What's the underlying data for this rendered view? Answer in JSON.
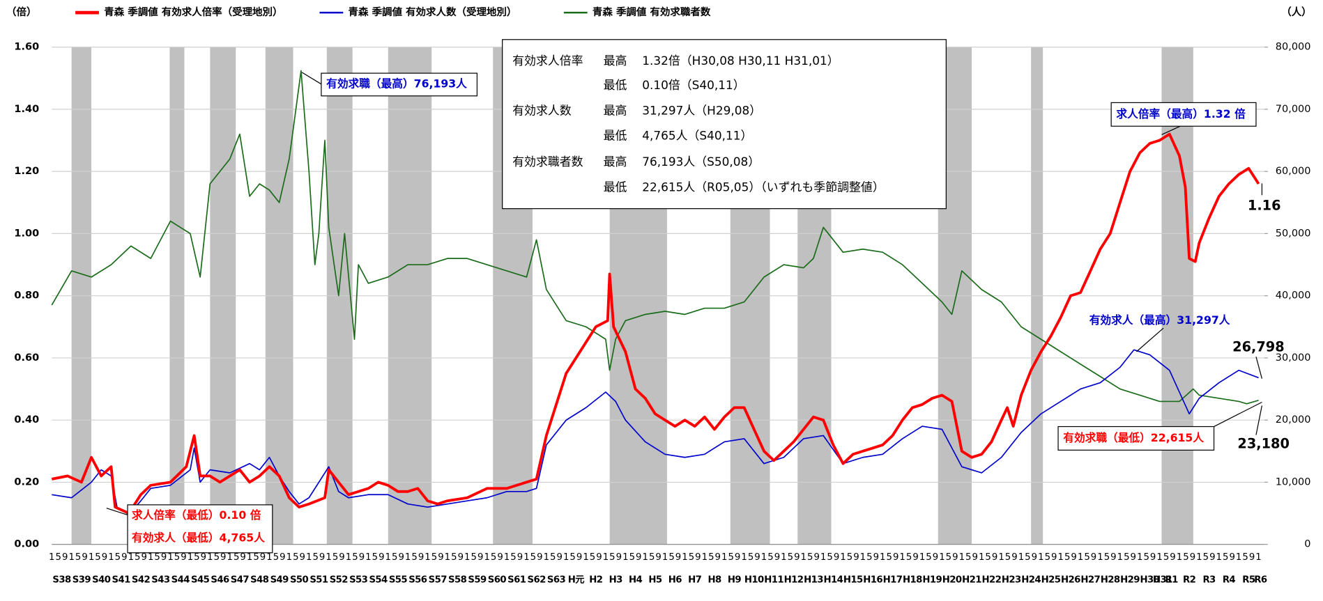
{
  "chart_data": {
    "type": "line",
    "left_axis_label": "（倍）",
    "right_axis_label": "（人）",
    "xlim": [
      1963,
      2024.3
    ],
    "ylim": [
      0,
      1.6
    ],
    "y2lim": [
      0,
      80000
    ],
    "yticks": [
      {
        "value": 0,
        "label": "0.00"
      },
      {
        "value": 0.2,
        "label": "0.20"
      },
      {
        "value": 0.4,
        "label": "0.40"
      },
      {
        "value": 0.6,
        "label": "0.60"
      },
      {
        "value": 0.8,
        "label": "0.80"
      },
      {
        "value": 1,
        "label": "1.00"
      },
      {
        "value": 1.2,
        "label": "1.20"
      },
      {
        "value": 1.4,
        "label": "1.40"
      },
      {
        "value": 1.6,
        "label": "1.60"
      }
    ],
    "y2ticks": [
      0,
      {
        "value": 10000,
        "label": "10,000"
      },
      {
        "value": 20000,
        "label": "20,000"
      },
      {
        "value": 30000,
        "label": "30,000"
      },
      {
        "value": 40000,
        "label": "40,000"
      },
      {
        "value": 50000,
        "label": "50,000"
      },
      {
        "value": 60000,
        "label": "60,000"
      },
      {
        "value": 70000,
        "label": "70,000"
      },
      {
        "value": 80000,
        "label": "80,000"
      }
    ],
    "grid": true,
    "month_labels": [
      "1",
      "5",
      "9"
    ],
    "xticks": [
      {
        "value": 1963.5,
        "label": "S38"
      },
      {
        "value": 1964.5,
        "label": "S39"
      },
      {
        "value": 1965.5,
        "label": "S40"
      },
      {
        "value": 1966.5,
        "label": "S41"
      },
      {
        "value": 1967.5,
        "label": "S42"
      },
      {
        "value": 1968.5,
        "label": "S43"
      },
      {
        "value": 1969.5,
        "label": "S44"
      },
      {
        "value": 1970.5,
        "label": "S45"
      },
      {
        "value": 1971.5,
        "label": "S46"
      },
      {
        "value": 1972.5,
        "label": "S47"
      },
      {
        "value": 1973.5,
        "label": "S48"
      },
      {
        "value": 1974.5,
        "label": "S49"
      },
      {
        "value": 1975.5,
        "label": "S50"
      },
      {
        "value": 1976.5,
        "label": "S51"
      },
      {
        "value": 1977.5,
        "label": "S52"
      },
      {
        "value": 1978.5,
        "label": "S53"
      },
      {
        "value": 1979.5,
        "label": "S54"
      },
      {
        "value": 1980.5,
        "label": "S55"
      },
      {
        "value": 1981.5,
        "label": "S56"
      },
      {
        "value": 1982.5,
        "label": "S57"
      },
      {
        "value": 1983.5,
        "label": "S58"
      },
      {
        "value": 1984.5,
        "label": "S59"
      },
      {
        "value": 1985.5,
        "label": "S60"
      },
      {
        "value": 1986.5,
        "label": "S61"
      },
      {
        "value": 1987.5,
        "label": "S62"
      },
      {
        "value": 1988.5,
        "label": "S63"
      },
      {
        "value": 1989.5,
        "label": "H元"
      },
      {
        "value": 1990.5,
        "label": "H2"
      },
      {
        "value": 1991.5,
        "label": "H3"
      },
      {
        "value": 1992.5,
        "label": "H4"
      },
      {
        "value": 1993.5,
        "label": "H5"
      },
      {
        "value": 1994.5,
        "label": "H6"
      },
      {
        "value": 1995.5,
        "label": "H7"
      },
      {
        "value": 1996.5,
        "label": "H8"
      },
      {
        "value": 1997.5,
        "label": "H9"
      },
      {
        "value": 1998.5,
        "label": "H10"
      },
      {
        "value": 1999.5,
        "label": "H11"
      },
      {
        "value": 2000.5,
        "label": "H12"
      },
      {
        "value": 2001.5,
        "label": "H13"
      },
      {
        "value": 2002.5,
        "label": "H14"
      },
      {
        "value": 2003.5,
        "label": "H15"
      },
      {
        "value": 2004.5,
        "label": "H16"
      },
      {
        "value": 2005.5,
        "label": "H17"
      },
      {
        "value": 2006.5,
        "label": "H18"
      },
      {
        "value": 2007.5,
        "label": "H19"
      },
      {
        "value": 2008.5,
        "label": "H20"
      },
      {
        "value": 2009.5,
        "label": "H21"
      },
      {
        "value": 2010.5,
        "label": "H22"
      },
      {
        "value": 2011.5,
        "label": "H23"
      },
      {
        "value": 2012.5,
        "label": "H24"
      },
      {
        "value": 2013.5,
        "label": "H25"
      },
      {
        "value": 2014.5,
        "label": "H26"
      },
      {
        "value": 2015.5,
        "label": "H27"
      },
      {
        "value": 2016.5,
        "label": "H28"
      },
      {
        "value": 2017.5,
        "label": "H29"
      },
      {
        "value": 2018.5,
        "label": "H30"
      },
      {
        "value": 2019.15,
        "label": "H31"
      },
      {
        "value": 2019.6,
        "label": "R1"
      },
      {
        "value": 2020.5,
        "label": "R2"
      },
      {
        "value": 2021.5,
        "label": "R3"
      },
      {
        "value": 2022.5,
        "label": "R4"
      },
      {
        "value": 2023.5,
        "label": "R5"
      },
      {
        "value": 2024.1,
        "label": "R6"
      }
    ],
    "shaded_periods": [
      [
        1964.0,
        1965.0
      ],
      [
        1968.96,
        1969.7
      ],
      [
        1971.0,
        1972.3
      ],
      [
        1973.8,
        1975.2
      ],
      [
        1976.9,
        1978.2
      ],
      [
        1980.0,
        1982.2
      ],
      [
        1985.3,
        1987.3
      ],
      [
        1991.2,
        1994.1
      ],
      [
        1997.3,
        1999.3
      ],
      [
        2000.7,
        2002.4
      ],
      [
        2007.8,
        2009.5
      ],
      [
        2012.5,
        2013.1
      ],
      [
        2019.1,
        2020.7
      ]
    ],
    "series": [
      {
        "name": "青森 季調値 有効求人倍率（受理地別）",
        "color": "#ff0000",
        "axis": "y",
        "x": [
          1963,
          1963.8,
          1964.5,
          1965,
          1965.5,
          1966,
          1966.2,
          1966.9,
          1967.5,
          1968,
          1969,
          1969.8,
          1970.2,
          1970.5,
          1971,
          1971.5,
          1972,
          1972.5,
          1973,
          1973.5,
          1974,
          1974.5,
          1975,
          1975.5,
          1976,
          1976.8,
          1977,
          1977.5,
          1978,
          1978.5,
          1979,
          1979.5,
          1980,
          1980.5,
          1981,
          1981.5,
          1982,
          1982.5,
          1983,
          1984,
          1985,
          1986,
          1987,
          1987.5,
          1988,
          1988.5,
          1989,
          1989.5,
          1990,
          1990.5,
          1991.1,
          1991.2,
          1991.4,
          1992,
          1992.5,
          1993,
          1993.5,
          1994,
          1994.5,
          1995,
          1995.5,
          1996,
          1996.5,
          1997,
          1997.5,
          1998,
          1998.5,
          1999,
          1999.5,
          2000,
          2000.5,
          2001,
          2001.5,
          2002,
          2002.5,
          2003,
          2003.5,
          2004,
          2004.5,
          2005,
          2005.5,
          2006,
          2006.5,
          2007,
          2007.5,
          2008,
          2008.5,
          2009,
          2009.5,
          2010,
          2010.5,
          2011,
          2011.3,
          2011.6,
          2012,
          2012.5,
          2013,
          2013.5,
          2014,
          2014.5,
          2015,
          2015.5,
          2016,
          2016.5,
          2017,
          2017.5,
          2018,
          2018.5,
          2019,
          2019.5,
          2020,
          2020.3,
          2020.5,
          2020.8,
          2021,
          2021.5,
          2022,
          2022.5,
          2023,
          2023.5,
          2023.8,
          2024
        ],
        "values": [
          0.21,
          0.22,
          0.2,
          0.28,
          0.22,
          0.25,
          0.12,
          0.1,
          0.16,
          0.19,
          0.2,
          0.25,
          0.35,
          0.22,
          0.22,
          0.2,
          0.22,
          0.24,
          0.2,
          0.22,
          0.25,
          0.22,
          0.15,
          0.12,
          0.13,
          0.15,
          0.24,
          0.2,
          0.16,
          0.17,
          0.18,
          0.2,
          0.19,
          0.17,
          0.17,
          0.18,
          0.14,
          0.13,
          0.14,
          0.15,
          0.18,
          0.18,
          0.2,
          0.21,
          0.35,
          0.45,
          0.55,
          0.6,
          0.65,
          0.7,
          0.72,
          0.87,
          0.7,
          0.62,
          0.5,
          0.47,
          0.42,
          0.4,
          0.38,
          0.4,
          0.38,
          0.41,
          0.37,
          0.41,
          0.44,
          0.44,
          0.37,
          0.3,
          0.27,
          0.3,
          0.33,
          0.37,
          0.41,
          0.4,
          0.32,
          0.26,
          0.29,
          0.3,
          0.31,
          0.32,
          0.35,
          0.4,
          0.44,
          0.45,
          0.47,
          0.48,
          0.46,
          0.3,
          0.28,
          0.29,
          0.33,
          0.4,
          0.44,
          0.38,
          0.48,
          0.56,
          0.62,
          0.67,
          0.73,
          0.8,
          0.81,
          0.88,
          0.95,
          1.0,
          1.1,
          1.2,
          1.26,
          1.29,
          1.3,
          1.32,
          1.25,
          1.15,
          0.92,
          0.91,
          0.97,
          1.05,
          1.12,
          1.16,
          1.19,
          1.21,
          1.18,
          1.16
        ]
      },
      {
        "name": "青森 季調値 有効求人数（受理地別）",
        "color": "#0000cc",
        "axis": "y2",
        "x": [
          1963,
          1964,
          1965,
          1965.5,
          1966,
          1966.3,
          1966.9,
          1967.5,
          1968,
          1969,
          1970,
          1970.2,
          1970.5,
          1971,
          1972,
          1973,
          1973.5,
          1974,
          1974.5,
          1975,
          1975.5,
          1976,
          1977,
          1977.5,
          1978,
          1979,
          1980,
          1981,
          1982,
          1983,
          1984,
          1985,
          1986,
          1987,
          1987.5,
          1988,
          1989,
          1990,
          1991,
          1991.5,
          1992,
          1993,
          1994,
          1995,
          1996,
          1997,
          1998,
          1999,
          2000,
          2001,
          2002,
          2003,
          2004,
          2005,
          2006,
          2007,
          2008,
          2009,
          2010,
          2011,
          2012,
          2013,
          2014,
          2015,
          2016,
          2017,
          2017.7,
          2018.5,
          2019.5,
          2020.5,
          2021,
          2022,
          2023,
          2024
        ],
        "values": [
          8000,
          7500,
          10000,
          12000,
          11000,
          6000,
          4765,
          7000,
          9000,
          9500,
          12000,
          15500,
          10000,
          12000,
          11500,
          13000,
          12000,
          14000,
          11000,
          8500,
          6500,
          7500,
          12500,
          8500,
          7500,
          8000,
          8000,
          6500,
          6000,
          6500,
          7000,
          7500,
          8500,
          8500,
          9000,
          16000,
          20000,
          22000,
          24500,
          23000,
          20000,
          16500,
          14500,
          14000,
          14500,
          16500,
          17000,
          13000,
          14000,
          17000,
          17500,
          13000,
          14000,
          14500,
          17000,
          19000,
          18500,
          12500,
          11500,
          14000,
          18000,
          21000,
          23000,
          25000,
          26000,
          28500,
          31297,
          30500,
          28000,
          21000,
          23500,
          26000,
          28000,
          26798
        ]
      },
      {
        "name": "青森 季調値 有効求職者数",
        "color": "#1a6b1a",
        "axis": "y2",
        "x": [
          1963,
          1964,
          1965,
          1966,
          1967,
          1968,
          1969,
          1970,
          1970.5,
          1971,
          1972,
          1972.5,
          1973,
          1973.5,
          1974,
          1974.5,
          1975,
          1975.6,
          1976,
          1976.3,
          1976.5,
          1976.8,
          1977,
          1977.5,
          1977.8,
          1978.3,
          1978.5,
          1979,
          1980,
          1981,
          1982,
          1983,
          1984,
          1985,
          1986,
          1987,
          1987.5,
          1988,
          1989,
          1990,
          1991,
          1991.2,
          1991.5,
          1992,
          1993,
          1994,
          1995,
          1996,
          1997,
          1998,
          1999,
          2000,
          2001,
          2001.5,
          2002,
          2003,
          2004,
          2005,
          2006,
          2007,
          2008,
          2008.5,
          2009,
          2010,
          2011,
          2012,
          2013,
          2014,
          2015,
          2016,
          2017,
          2018,
          2019,
          2020,
          2020.7,
          2021,
          2022,
          2023,
          2023.4,
          2024
        ],
        "values": [
          38500,
          44000,
          43000,
          45000,
          48000,
          46000,
          52000,
          50000,
          43000,
          58000,
          62000,
          66000,
          56000,
          58000,
          57000,
          55000,
          62000,
          76193,
          60000,
          45000,
          50000,
          65000,
          51000,
          40000,
          50000,
          33000,
          45000,
          42000,
          43000,
          45000,
          45000,
          46000,
          46000,
          45000,
          44000,
          43000,
          49000,
          41000,
          36000,
          35000,
          33000,
          28000,
          33000,
          36000,
          37000,
          37500,
          37000,
          38000,
          38000,
          39000,
          43000,
          45000,
          44500,
          46000,
          51000,
          47000,
          47500,
          47000,
          45000,
          42000,
          39000,
          37000,
          44000,
          41000,
          39000,
          35000,
          33000,
          31000,
          29000,
          27000,
          25000,
          24000,
          23000,
          23000,
          25000,
          24000,
          23500,
          23000,
          22615,
          23180
        ]
      }
    ],
    "annotations": [
      {
        "text": "有効求職（最高）76,193人",
        "color": "#0000cc"
      },
      {
        "text": "求人倍率（最高）1.32 倍",
        "color": "#0000cc"
      },
      {
        "text": "1.16",
        "color": "#000000"
      },
      {
        "text": "有効求人（最高）31,297人",
        "color": "#0000cc"
      },
      {
        "text": "26,798",
        "color": "#000000"
      },
      {
        "text": "有効求職（最低）22,615人",
        "color": "#ff0000"
      },
      {
        "text": "23,180",
        "color": "#000000"
      },
      {
        "text": "求人倍率（最低）0.10 倍",
        "color": "#ff0000"
      },
      {
        "text": "有効求人（最低）4,765人",
        "color": "#ff0000"
      }
    ],
    "info_box": [
      [
        "有効求人倍率",
        "最高",
        "1.32倍（H30,08 H30,11 H31,01）"
      ],
      [
        "",
        "最低",
        "0.10倍（S40,11）"
      ],
      [
        "有効求人数",
        "最高",
        "31,297人（H29,08）"
      ],
      [
        "",
        "最低",
        "4,765人（S40,11）"
      ],
      [
        "有効求職者数",
        "最高",
        "76,193人（S50,08）"
      ],
      [
        "",
        "最低",
        "22,615人（R05,05）（いずれも季節調整値）"
      ]
    ]
  }
}
